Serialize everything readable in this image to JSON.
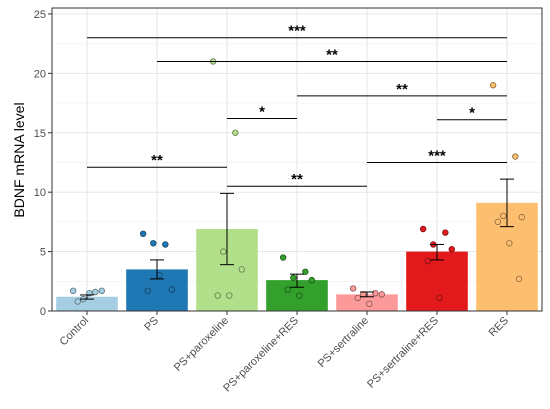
{
  "chart_data": {
    "type": "bar",
    "ylabel": "BDNF mRNA level",
    "xlabel": "",
    "ylim": [
      0,
      25.5
    ],
    "yticks": [
      0,
      5,
      10,
      15,
      20,
      25
    ],
    "grid": true,
    "categories": [
      "Control",
      "PS",
      "PS+paroxeline",
      "PS+paroxeline+RES",
      "PS+sertraline",
      "PS+sertraline+RES",
      "RES"
    ],
    "values": [
      1.2,
      3.5,
      6.9,
      2.6,
      1.4,
      5.0,
      9.1
    ],
    "error_low": [
      1.0,
      2.7,
      3.9,
      2.0,
      1.2,
      4.3,
      7.1
    ],
    "error_high": [
      1.35,
      4.3,
      9.9,
      3.1,
      1.6,
      5.6,
      11.1
    ],
    "colors": [
      "#a6cee3",
      "#1f78b4",
      "#b2df8a",
      "#33a02c",
      "#fb9a99",
      "#e31a1c",
      "#fdbf6f"
    ],
    "points": [
      [
        1.7,
        1.6,
        1.0,
        1.7,
        0.8,
        1.5
      ],
      [
        6.5,
        5.6,
        5.7,
        1.8,
        1.7,
        3.0
      ],
      [
        21.0,
        15.0,
        5.0,
        3.5,
        1.3,
        1.3
      ],
      [
        4.5,
        3.3,
        2.8,
        2.6,
        1.8,
        1.3
      ],
      [
        1.9,
        1.5,
        1.4,
        1.4,
        1.1,
        0.6
      ],
      [
        6.9,
        6.6,
        5.6,
        5.2,
        4.2,
        1.1
      ],
      [
        19.0,
        13.0,
        8.0,
        7.9,
        7.5,
        5.7,
        2.7
      ]
    ],
    "brackets": [
      {
        "from": 0,
        "to": 6,
        "y": 23.0,
        "label": "***"
      },
      {
        "from": 1,
        "to": 6,
        "y": 21.0,
        "label": "**"
      },
      {
        "from": 2,
        "to": 3,
        "y": 16.2,
        "label": "*"
      },
      {
        "from": 3,
        "to": 6,
        "y": 18.1,
        "label": "**"
      },
      {
        "from": 5,
        "to": 6,
        "y": 16.1,
        "label": "*"
      },
      {
        "from": 0,
        "to": 2,
        "y": 12.1,
        "label": "**"
      },
      {
        "from": 4,
        "to": 6,
        "y": 12.5,
        "label": "***"
      },
      {
        "from": 2,
        "to": 4,
        "y": 10.5,
        "label": "**"
      }
    ]
  }
}
